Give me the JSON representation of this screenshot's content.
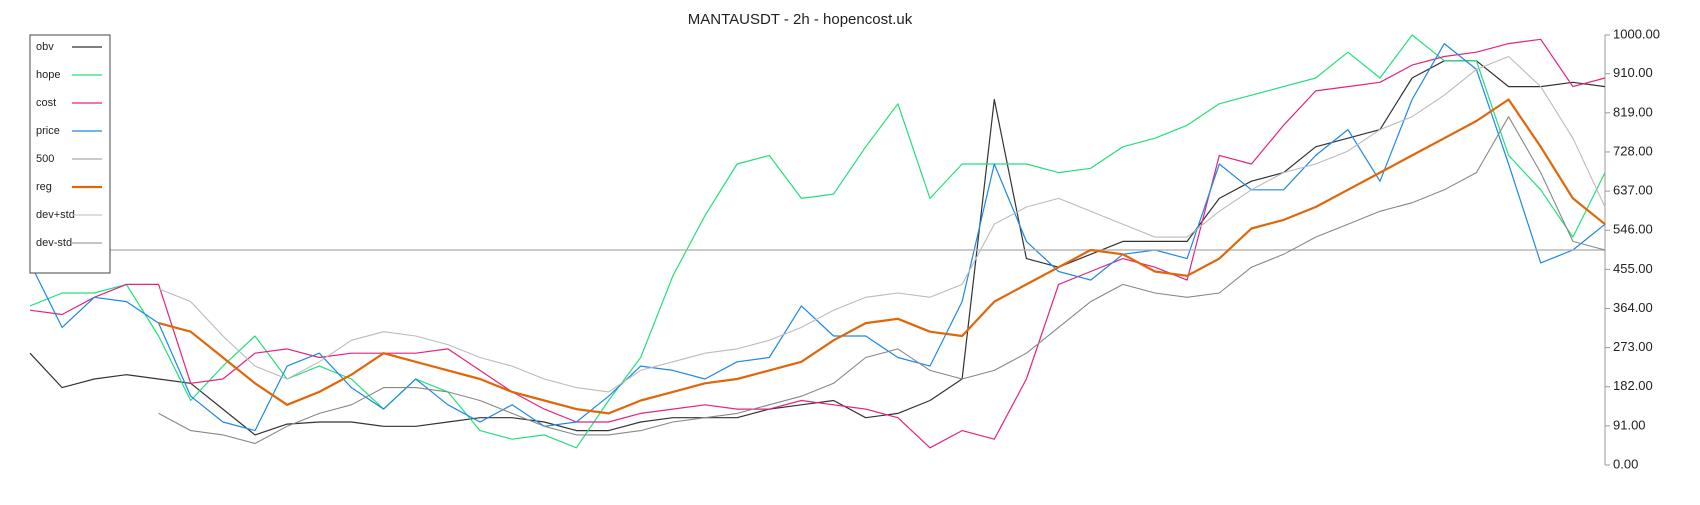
{
  "chart_data": {
    "type": "line",
    "title": "MANTAUSDT - 2h - hopencost.uk",
    "legend": "top-left",
    "grid": false,
    "ylim": [
      0,
      1000
    ],
    "yticks": [
      {
        "value": 0,
        "label": "0.00"
      },
      {
        "value": 91,
        "label": "91.00"
      },
      {
        "value": 182,
        "label": "182.00"
      },
      {
        "value": 273,
        "label": "273.00"
      },
      {
        "value": 364,
        "label": "364.00"
      },
      {
        "value": 455,
        "label": "455.00"
      },
      {
        "value": 546,
        "label": "546.00"
      },
      {
        "value": 637,
        "label": "637.00"
      },
      {
        "value": 728,
        "label": "728.00"
      },
      {
        "value": 819,
        "label": "819.00"
      },
      {
        "value": 910,
        "label": "910.00"
      },
      {
        "value": 1000,
        "label": "1000.00"
      }
    ],
    "series": [
      {
        "name": "obv",
        "color": "#333333",
        "width": 1.2,
        "values": [
          260,
          180,
          200,
          210,
          200,
          190,
          130,
          70,
          95,
          100,
          100,
          90,
          90,
          100,
          110,
          110,
          100,
          80,
          80,
          100,
          110,
          110,
          110,
          130,
          140,
          150,
          110,
          120,
          150,
          200,
          850,
          480,
          460,
          490,
          520,
          520,
          520,
          620,
          660,
          680,
          740,
          760,
          780,
          900,
          940,
          940,
          880,
          880,
          890,
          880
        ]
      },
      {
        "name": "hope",
        "color": "#22e07a",
        "width": 1.2,
        "values": [
          370,
          400,
          400,
          420,
          300,
          150,
          230,
          300,
          200,
          230,
          200,
          130,
          200,
          170,
          80,
          60,
          70,
          40,
          150,
          250,
          440,
          580,
          700,
          720,
          620,
          630,
          740,
          840,
          620,
          700,
          700,
          700,
          680,
          690,
          740,
          760,
          790,
          840,
          860,
          880,
          900,
          960,
          900,
          1000,
          940,
          940,
          720,
          640,
          530,
          680
        ]
      },
      {
        "name": "cost",
        "color": "#e6227f",
        "width": 1.2,
        "values": [
          360,
          350,
          390,
          420,
          420,
          190,
          200,
          260,
          270,
          250,
          260,
          260,
          260,
          270,
          220,
          170,
          130,
          100,
          100,
          120,
          130,
          140,
          130,
          130,
          150,
          140,
          130,
          110,
          40,
          80,
          60,
          200,
          420,
          450,
          480,
          460,
          430,
          720,
          700,
          790,
          870,
          880,
          890,
          930,
          950,
          960,
          980,
          990,
          880,
          900
        ]
      },
      {
        "name": "price",
        "color": "#1e88e5",
        "width": 1.2,
        "values": [
          470,
          320,
          390,
          380,
          330,
          160,
          100,
          80,
          230,
          260,
          180,
          130,
          200,
          140,
          100,
          140,
          90,
          100,
          160,
          230,
          220,
          200,
          240,
          250,
          370,
          300,
          300,
          250,
          230,
          380,
          700,
          520,
          450,
          430,
          490,
          500,
          480,
          700,
          640,
          640,
          720,
          780,
          660,
          850,
          980,
          920,
          700,
          470,
          500,
          560
        ]
      },
      {
        "name": "500",
        "color": "#aaaaaa",
        "width": 1.2,
        "values": [
          500,
          500,
          500,
          500,
          500,
          500,
          500,
          500,
          500,
          500,
          500,
          500,
          500,
          500,
          500,
          500,
          500,
          500,
          500,
          500,
          500,
          500,
          500,
          500,
          500,
          500,
          500,
          500,
          500,
          500,
          500,
          500,
          500,
          500,
          500,
          500,
          500,
          500,
          500,
          500,
          500,
          500,
          500,
          500,
          500,
          500,
          500,
          500,
          500,
          500
        ]
      },
      {
        "name": "reg",
        "color": "#e0660a",
        "width": 2.2,
        "values": [
          null,
          null,
          null,
          null,
          330,
          310,
          250,
          190,
          140,
          170,
          210,
          260,
          240,
          220,
          200,
          170,
          150,
          130,
          120,
          150,
          170,
          190,
          200,
          220,
          240,
          290,
          330,
          340,
          310,
          300,
          380,
          420,
          460,
          500,
          490,
          450,
          440,
          480,
          550,
          570,
          600,
          640,
          680,
          720,
          760,
          800,
          850,
          740,
          620,
          560
        ]
      },
      {
        "name": "dev+std",
        "color": "#bbbbbb",
        "width": 1.1,
        "values": [
          null,
          null,
          null,
          null,
          410,
          380,
          300,
          230,
          200,
          240,
          290,
          310,
          300,
          280,
          250,
          230,
          200,
          180,
          170,
          220,
          240,
          260,
          270,
          290,
          320,
          360,
          390,
          400,
          390,
          420,
          560,
          600,
          620,
          590,
          560,
          530,
          530,
          590,
          640,
          680,
          700,
          730,
          780,
          810,
          860,
          920,
          950,
          880,
          760,
          600
        ]
      },
      {
        "name": "dev-std",
        "color": "#888888",
        "width": 1.1,
        "values": [
          null,
          null,
          null,
          null,
          120,
          80,
          70,
          50,
          90,
          120,
          140,
          180,
          180,
          170,
          150,
          120,
          90,
          70,
          70,
          80,
          100,
          110,
          120,
          140,
          160,
          190,
          250,
          270,
          220,
          200,
          220,
          260,
          320,
          380,
          420,
          400,
          390,
          400,
          460,
          490,
          530,
          560,
          590,
          610,
          640,
          680,
          810,
          680,
          520,
          500
        ]
      }
    ]
  }
}
